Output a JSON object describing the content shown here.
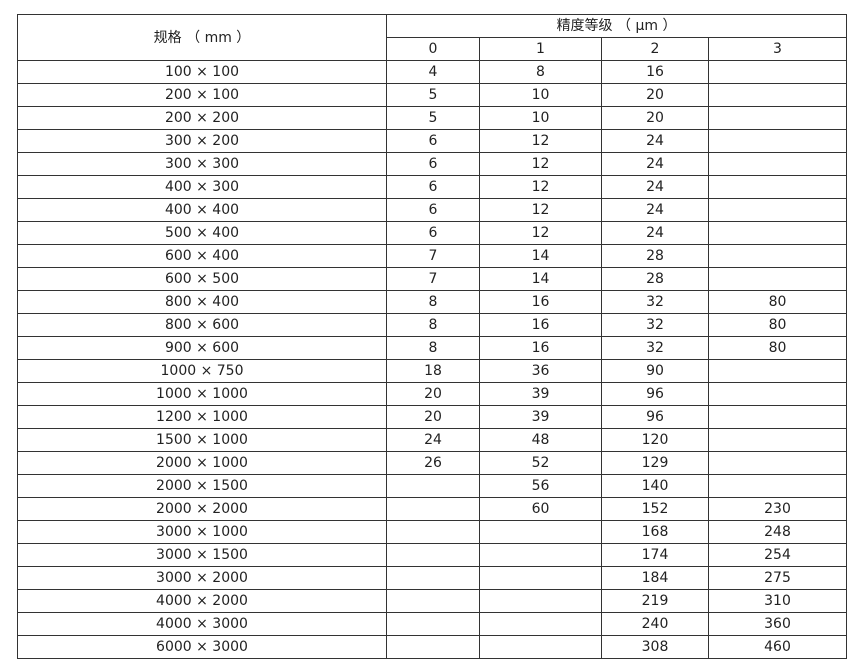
{
  "header": {
    "spec_label": "规格 （ mm ）",
    "grade_label": "精度等级 （ μm ）",
    "grades": [
      "0",
      "1",
      "2",
      "3"
    ]
  },
  "rows": [
    [
      "100 × 100",
      "4",
      "8",
      "16",
      ""
    ],
    [
      "200 × 100",
      "5",
      "10",
      "20",
      ""
    ],
    [
      "200 × 200",
      "5",
      "10",
      "20",
      ""
    ],
    [
      "300 × 200",
      "6",
      "12",
      "24",
      ""
    ],
    [
      "300 × 300",
      "6",
      "12",
      "24",
      ""
    ],
    [
      "400 × 300",
      "6",
      "12",
      "24",
      ""
    ],
    [
      "400 × 400",
      "6",
      "12",
      "24",
      ""
    ],
    [
      "500 × 400",
      "6",
      "12",
      "24",
      ""
    ],
    [
      "600 × 400",
      "7",
      "14",
      "28",
      ""
    ],
    [
      "600 × 500",
      "7",
      "14",
      "28",
      ""
    ],
    [
      "800 × 400",
      "8",
      "16",
      "32",
      "80"
    ],
    [
      "800 × 600",
      "8",
      "16",
      "32",
      "80"
    ],
    [
      "900 × 600",
      "8",
      "16",
      "32",
      "80"
    ],
    [
      "1000 × 750",
      "18",
      "36",
      "90",
      ""
    ],
    [
      "1000 × 1000",
      "20",
      "39",
      "96",
      ""
    ],
    [
      "1200 × 1000",
      "20",
      "39",
      "96",
      ""
    ],
    [
      "1500 × 1000",
      "24",
      "48",
      "120",
      ""
    ],
    [
      "2000 × 1000",
      "26",
      "52",
      "129",
      ""
    ],
    [
      "2000 × 1500",
      "",
      "56",
      "140",
      ""
    ],
    [
      "2000 × 2000",
      "",
      "60",
      "152",
      "230"
    ],
    [
      "3000 × 1000",
      "",
      "",
      "168",
      "248"
    ],
    [
      "3000 × 1500",
      "",
      "",
      "174",
      "254"
    ],
    [
      "3000 × 2000",
      "",
      "",
      "184",
      "275"
    ],
    [
      "4000 × 2000",
      "",
      "",
      "219",
      "310"
    ],
    [
      "4000 × 3000",
      "",
      "",
      "240",
      "360"
    ],
    [
      "6000 × 3000",
      "",
      "",
      "308",
      "460"
    ]
  ]
}
